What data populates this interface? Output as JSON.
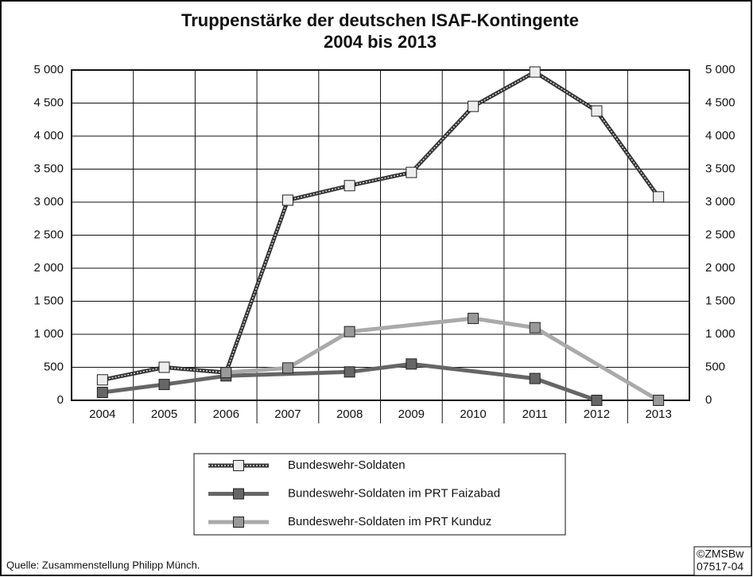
{
  "chart_data": {
    "type": "line",
    "title": "Truppenstärke der deutschen ISAF-Kontingente",
    "subtitle": "2004 bis 2013",
    "categories": [
      "2004",
      "2005",
      "2006",
      "2007",
      "2008",
      "2009",
      "2010",
      "2011",
      "2012",
      "2013"
    ],
    "series": [
      {
        "name": "Bundeswehr-Soldaten",
        "color": "#333333",
        "marker_color": "#eeeeee",
        "hatched": true,
        "values": [
          310,
          500,
          420,
          3030,
          3250,
          3450,
          4450,
          4970,
          4380,
          3080
        ],
        "markers": [
          true,
          true,
          true,
          true,
          true,
          true,
          true,
          true,
          true,
          true
        ]
      },
      {
        "name": "Bundeswehr-Soldaten im PRT Faizabad",
        "color": "#666666",
        "marker_color": "#666666",
        "hatched": false,
        "values": [
          120,
          240,
          370,
          400,
          430,
          550,
          440,
          330,
          0,
          null
        ],
        "markers": [
          true,
          true,
          true,
          false,
          true,
          true,
          false,
          true,
          true,
          false
        ]
      },
      {
        "name": "Bundeswehr-Soldaten im PRT Kunduz",
        "color": "#aaaaaa",
        "marker_color": "#999999",
        "hatched": false,
        "values": [
          null,
          null,
          420,
          490,
          1040,
          1140,
          1240,
          1100,
          550,
          0
        ],
        "markers": [
          false,
          false,
          true,
          true,
          true,
          false,
          true,
          true,
          false,
          true
        ]
      }
    ],
    "ylim": [
      0,
      5000
    ],
    "yticks": [
      0,
      500,
      {
        "value": 1000,
        "label": "1 000"
      },
      {
        "value": 1500,
        "label": "1 500"
      },
      {
        "value": 2000,
        "label": "2 000"
      },
      {
        "value": 2500,
        "label": "2 500"
      },
      {
        "value": 3000,
        "label": "3 000"
      },
      {
        "value": 3500,
        "label": "3 500"
      },
      {
        "value": 4000,
        "label": "4 000"
      },
      {
        "value": 4500,
        "label": "4 500"
      },
      {
        "value": 5000,
        "label": "5 000"
      }
    ],
    "grid": true,
    "source": "Quelle: Zusammenstellung Philipp Münch.",
    "credit": [
      "©ZMSBw",
      "07517-04"
    ]
  }
}
